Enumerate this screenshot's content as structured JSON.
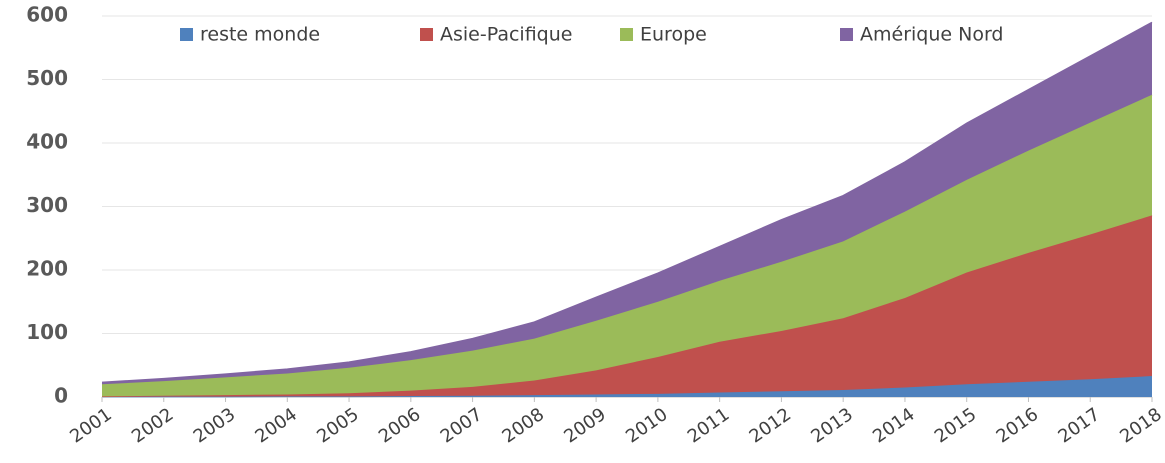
{
  "chart_data": {
    "type": "stacked_area",
    "categories": [
      "2001",
      "2002",
      "2003",
      "2004",
      "2005",
      "2006",
      "2007",
      "2008",
      "2009",
      "2010",
      "2011",
      "2012",
      "2013",
      "2014",
      "2015",
      "2016",
      "2017",
      "2018"
    ],
    "series": [
      {
        "name": "reste monde",
        "color": "#4f81bd",
        "values": [
          0.5,
          0.5,
          0.5,
          1,
          1,
          1.5,
          2,
          3,
          4,
          5,
          7,
          9,
          11,
          15,
          20,
          24,
          28,
          33
        ]
      },
      {
        "name": "Asie-Pacifique",
        "color": "#c0504d",
        "values": [
          0.5,
          1.5,
          2.5,
          3,
          5,
          8.5,
          14,
          23,
          38,
          58,
          80,
          95,
          113,
          141,
          176,
          203,
          228,
          253
        ]
      },
      {
        "name": "Europe",
        "color": "#9bbb59",
        "values": [
          19,
          23,
          28,
          33,
          40,
          48,
          57,
          66,
          78,
          87,
          96,
          109,
          121,
          136,
          146,
          161,
          176,
          190
        ]
      },
      {
        "name": "Amérique Nord",
        "color": "#8064a2",
        "values": [
          3,
          4,
          5,
          7,
          9,
          13,
          19,
          26,
          37,
          45,
          54,
          66,
          72,
          78,
          89,
          96,
          105,
          114
        ]
      }
    ],
    "ylim": [
      0,
      600
    ],
    "yticks": [
      0,
      100,
      200,
      300,
      400,
      500,
      600
    ],
    "grid": true,
    "legend": "top"
  }
}
